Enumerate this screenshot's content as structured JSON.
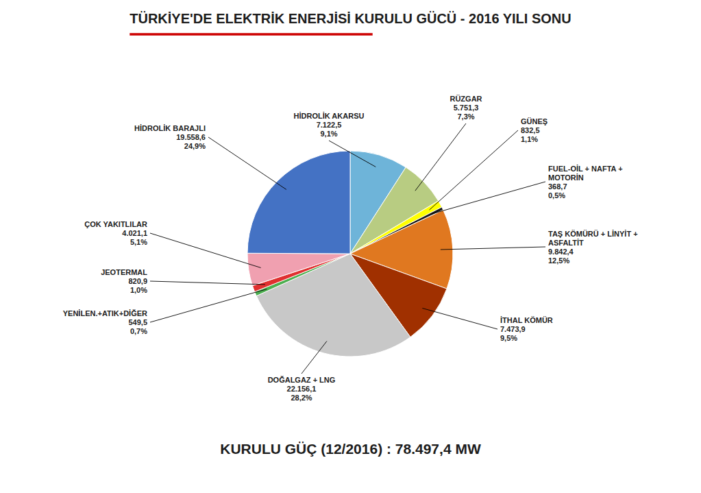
{
  "chart_data": {
    "type": "pie",
    "title": "TÜRKİYE'DE ELEKTRİK ENERJİSİ KURULU GÜCÜ - 2016 YILI SONU",
    "subtitle": "KURULU GÜÇ (12/2016) : 78.497,4 MW",
    "categories": [
      "HİDROLİK AKARSU",
      "RÜZGAR",
      "GÜNEŞ",
      "FUEL-OİL + NAFTA +\nMOTORİN",
      "TAŞ KÖMÜRÜ + LİNYİT +\nASFALTİT",
      "İTHAL KÖMÜR",
      "DOĞALGAZ + LNG",
      "YENİLEN.+ATIK+DİĞER",
      "JEOTERMAL",
      "ÇOK YAKITLILAR",
      "HİDROLİK BARAJLI"
    ],
    "values": [
      9.1,
      7.3,
      1.1,
      0.5,
      12.5,
      9.5,
      28.2,
      0.7,
      1.0,
      5.1,
      24.9
    ],
    "value_labels": [
      "9,1%",
      "7,3%",
      "1,1%",
      "0,5%",
      "12,5%",
      "9,5%",
      "28,2%",
      "0,7%",
      "1,0%",
      "5,1%",
      "24,9%"
    ],
    "mw_labels": [
      "7.122,5",
      "5.751,3",
      "832,5",
      "368,7",
      "9.842,4",
      "7.473,9",
      "22.156,1",
      "549,5",
      "820,9",
      "4.021,1",
      "19.558,6"
    ],
    "colors": [
      "#6EB4D9",
      "#B8CC82",
      "#FFFF00",
      "#1A1A1A",
      "#E07820",
      "#A03000",
      "#C8C8C8",
      "#4CAF50",
      "#E03030",
      "#F0A0B0",
      "#4472C4"
    ],
    "data_labels": true
  }
}
